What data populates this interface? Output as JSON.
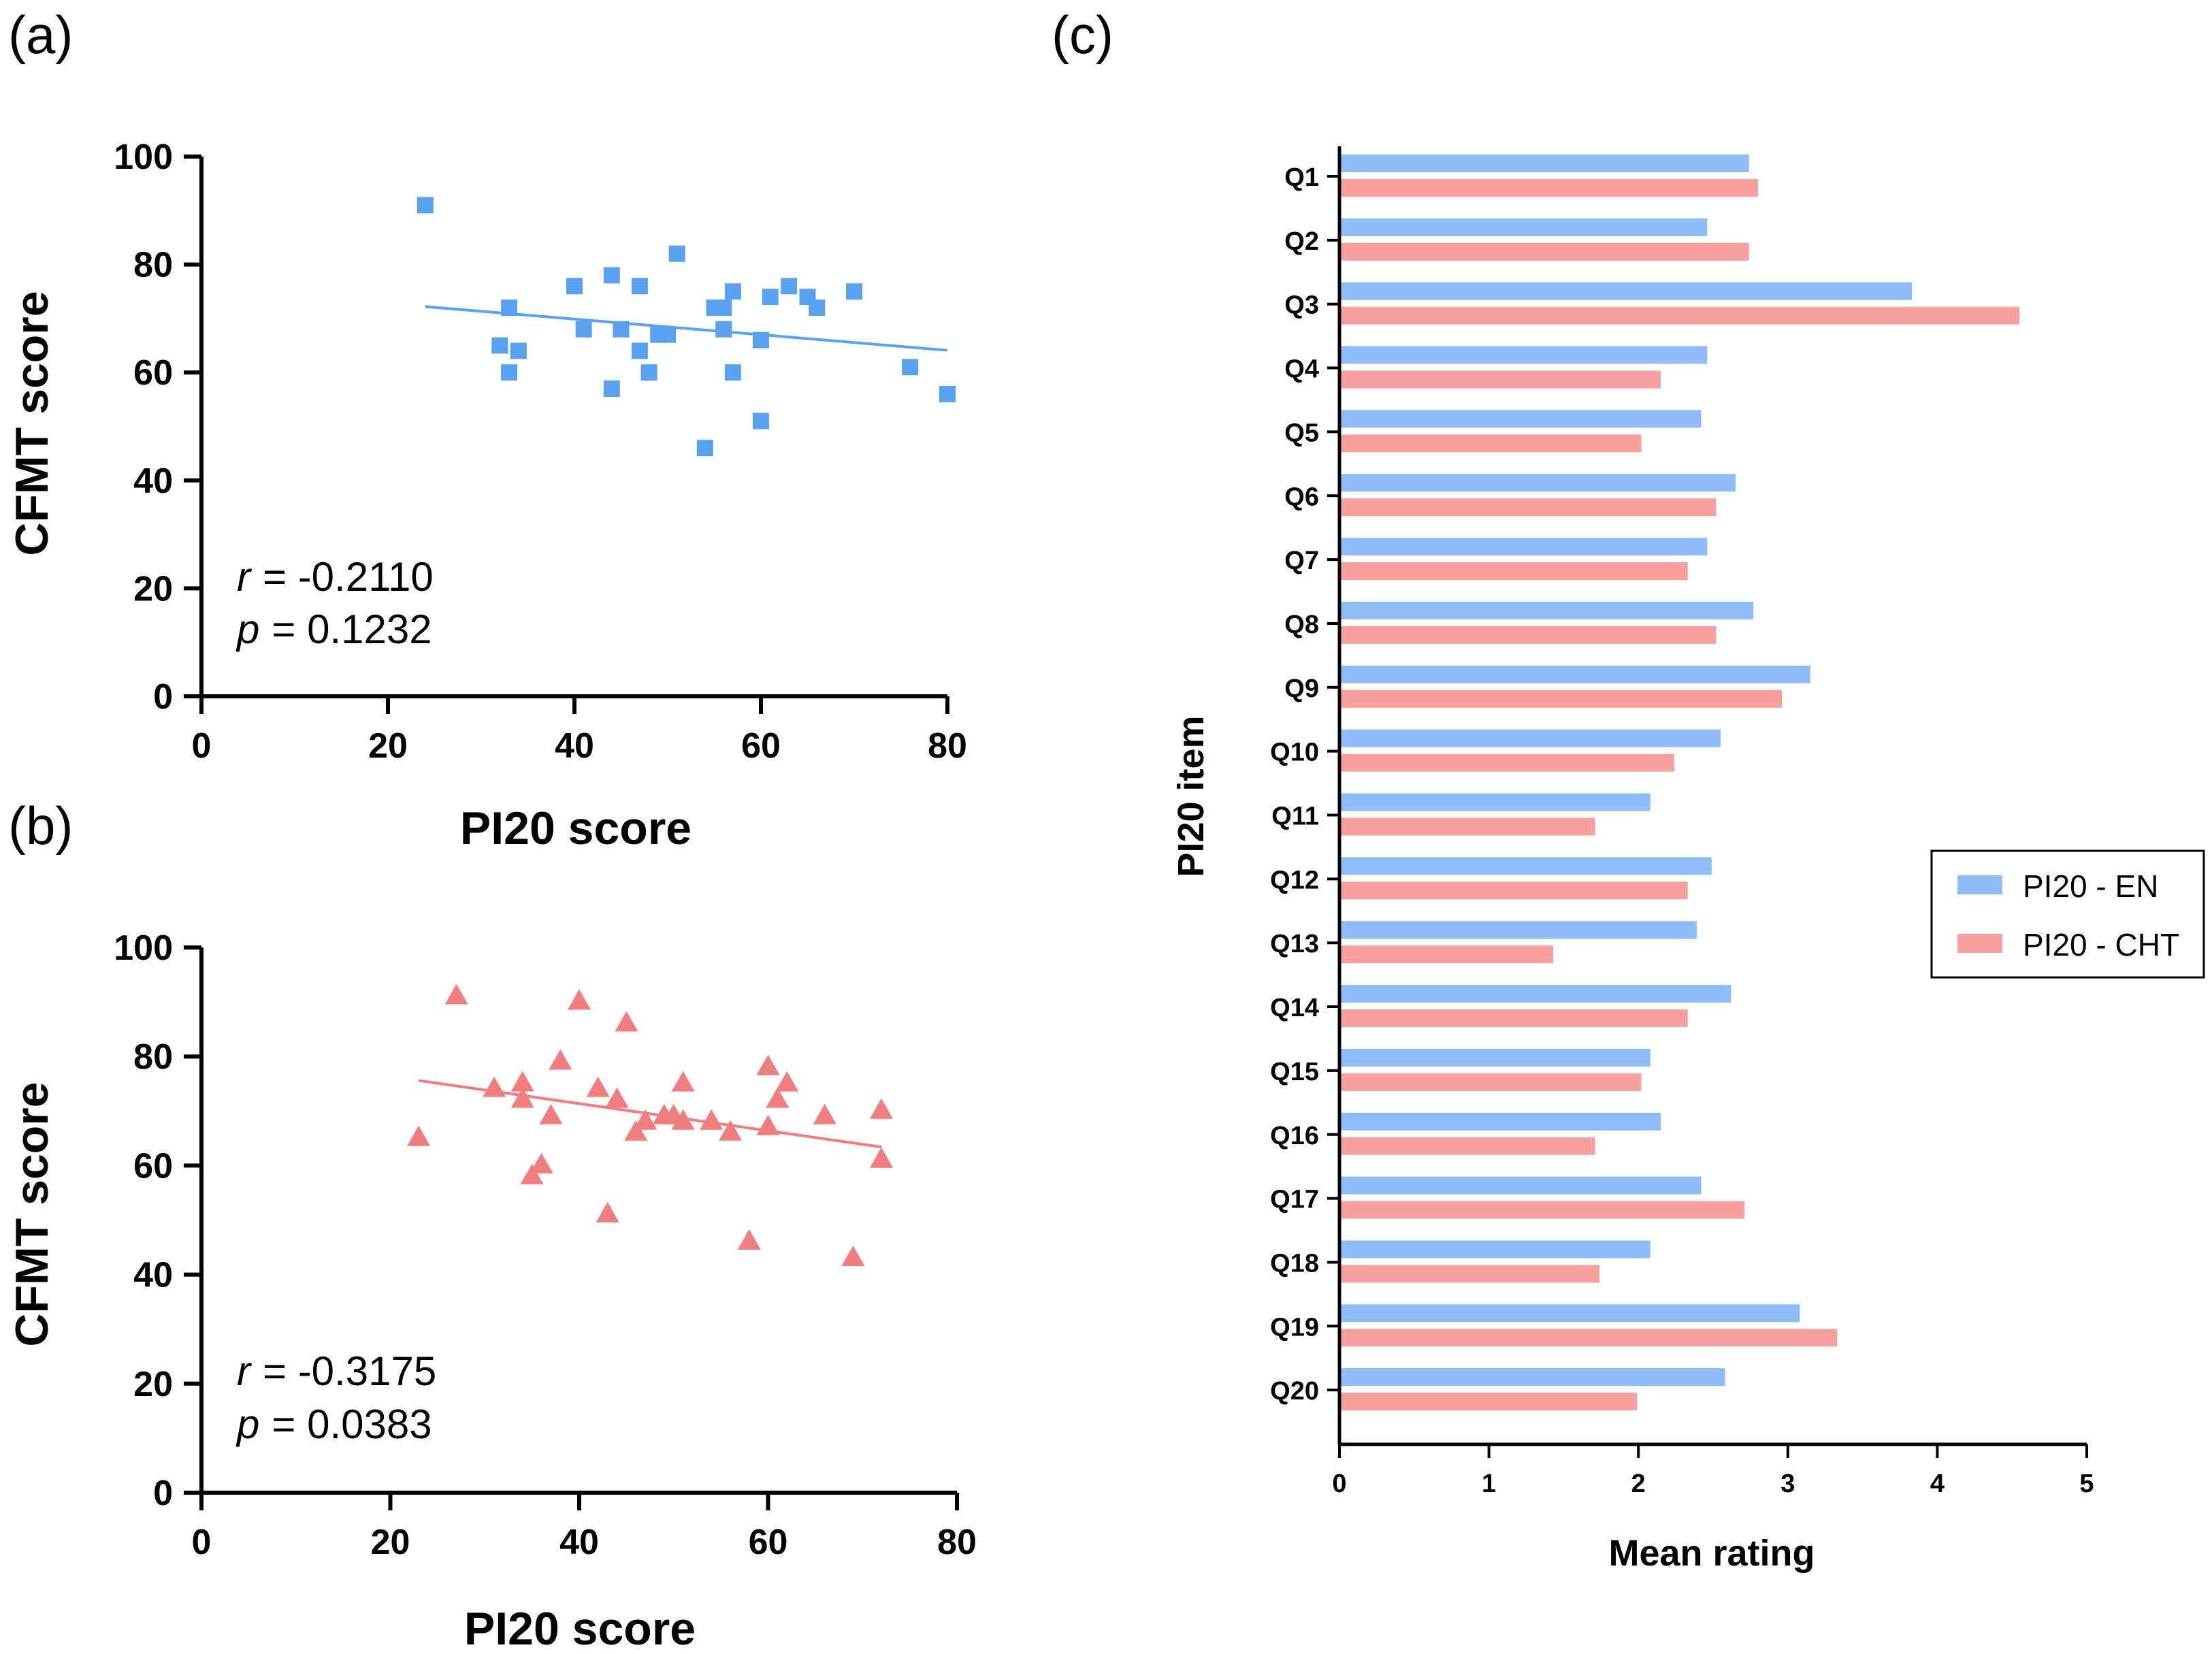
{
  "colors": {
    "blue": "#5aa2f0",
    "red": "#f07e7e",
    "blue_bar": "#8ebdf7",
    "red_bar": "#f8a0a0",
    "axis": "#000000"
  },
  "chart_data": [
    {
      "id": "a",
      "type": "scatter",
      "panel_label": "(a)",
      "xlabel": "PI20 score",
      "ylabel": "CFMT score",
      "xlim": [
        0,
        80
      ],
      "ylim": [
        0,
        100
      ],
      "x_ticks": [
        "0",
        "20",
        "40",
        "60",
        "80"
      ],
      "y_ticks": [
        "0",
        "20",
        "40",
        "60",
        "80",
        "100"
      ],
      "marker": "square",
      "color": "#5aa2f0",
      "points": [
        [
          24,
          91
        ],
        [
          32,
          65
        ],
        [
          33,
          72
        ],
        [
          33,
          60
        ],
        [
          34,
          64
        ],
        [
          40,
          76
        ],
        [
          41,
          68
        ],
        [
          44,
          78
        ],
        [
          44,
          57
        ],
        [
          45,
          68
        ],
        [
          47,
          76
        ],
        [
          47,
          64
        ],
        [
          48,
          60
        ],
        [
          49,
          67
        ],
        [
          50,
          67
        ],
        [
          51,
          82
        ],
        [
          54,
          46
        ],
        [
          55,
          72
        ],
        [
          56,
          72
        ],
        [
          56,
          68
        ],
        [
          57,
          75
        ],
        [
          57,
          60
        ],
        [
          60,
          66
        ],
        [
          60,
          51
        ],
        [
          61,
          74
        ],
        [
          63,
          76
        ],
        [
          65,
          74
        ],
        [
          66,
          72
        ],
        [
          70,
          75
        ],
        [
          76,
          61
        ],
        [
          80,
          56
        ]
      ],
      "regression": {
        "x": [
          24,
          80
        ],
        "y": [
          72.2,
          64.1
        ]
      },
      "stats": {
        "r_symbol": "r",
        "r_value": "= -0.2110",
        "p_symbol": "p",
        "p_value": "=  0.1232"
      }
    },
    {
      "id": "b",
      "type": "scatter",
      "panel_label": "(b)",
      "xlabel": "PI20 score",
      "ylabel": "CFMT score",
      "xlim": [
        0,
        80
      ],
      "ylim": [
        0,
        100
      ],
      "x_ticks": [
        "0",
        "20",
        "40",
        "60",
        "80"
      ],
      "y_ticks": [
        "0",
        "20",
        "40",
        "60",
        "80",
        "100"
      ],
      "marker": "triangle",
      "color": "#f07e7e",
      "points": [
        [
          23,
          65
        ],
        [
          27,
          91
        ],
        [
          31,
          74
        ],
        [
          34,
          75
        ],
        [
          34,
          72
        ],
        [
          35,
          58
        ],
        [
          36,
          60
        ],
        [
          37,
          69
        ],
        [
          38,
          79
        ],
        [
          40,
          90
        ],
        [
          42,
          74
        ],
        [
          43,
          51
        ],
        [
          44,
          72
        ],
        [
          45,
          86
        ],
        [
          46,
          66
        ],
        [
          47,
          68
        ],
        [
          49,
          69
        ],
        [
          50,
          69
        ],
        [
          51,
          75
        ],
        [
          51,
          68
        ],
        [
          54,
          68
        ],
        [
          56,
          66
        ],
        [
          58,
          46
        ],
        [
          60,
          78
        ],
        [
          60,
          67
        ],
        [
          61,
          72
        ],
        [
          62,
          75
        ],
        [
          66,
          69
        ],
        [
          69,
          43
        ],
        [
          72,
          70
        ],
        [
          72,
          61
        ]
      ],
      "regression": {
        "x": [
          23,
          72
        ],
        "y": [
          75.6,
          63.4
        ]
      },
      "stats": {
        "r_symbol": "r",
        "r_value": "= -0.3175",
        "p_symbol": "p",
        "p_value": "=  0.0383"
      }
    },
    {
      "id": "c",
      "type": "bar",
      "orientation": "horizontal",
      "panel_label": "(c)",
      "xlabel": "Mean rating",
      "ylabel": "PI20 item",
      "xlim": [
        0,
        5
      ],
      "x_ticks": [
        "0",
        "1",
        "2",
        "3",
        "4",
        "5"
      ],
      "categories": [
        "Q1",
        "Q2",
        "Q3",
        "Q4",
        "Q5",
        "Q6",
        "Q7",
        "Q8",
        "Q9",
        "Q10",
        "Q11",
        "Q12",
        "Q13",
        "Q14",
        "Q15",
        "Q16",
        "Q17",
        "Q18",
        "Q19",
        "Q20"
      ],
      "series": [
        {
          "name": "PI20 - EN",
          "color": "#8ebdf7",
          "values": [
            2.74,
            2.46,
            3.83,
            2.46,
            2.42,
            2.65,
            2.46,
            2.77,
            3.15,
            2.55,
            2.08,
            2.49,
            2.39,
            2.62,
            2.08,
            2.15,
            2.42,
            2.08,
            3.08,
            2.58
          ]
        },
        {
          "name": "PI20 - CHT",
          "color": "#f8a0a0",
          "values": [
            2.8,
            2.74,
            4.55,
            2.15,
            2.02,
            2.52,
            2.33,
            2.52,
            2.96,
            2.24,
            1.71,
            2.33,
            1.43,
            2.33,
            2.02,
            1.71,
            2.71,
            1.74,
            3.33,
            1.99
          ]
        }
      ],
      "legend": {
        "position": "right",
        "entries": [
          "PI20 - EN",
          "PI20 - CHT"
        ]
      }
    }
  ]
}
